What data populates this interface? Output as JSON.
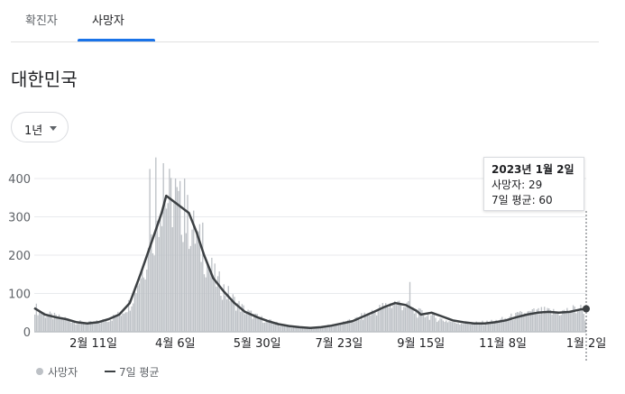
{
  "tabs": [
    {
      "label": "확진자",
      "active": false
    },
    {
      "label": "사망자",
      "active": true
    }
  ],
  "region": "대한민국",
  "period": "1년",
  "tooltip": {
    "date": "2023년 1월 2일",
    "deaths": "사망자: 29",
    "avg": "7일 평균: 60"
  },
  "legend": {
    "deaths": "사망자",
    "avg": "7일 평균"
  },
  "colors": {
    "bars": "#bdc1c6",
    "avg_line": "#3c4043",
    "accent": "#1a73e8"
  },
  "chart_data": {
    "type": "bar",
    "x_start": "2022-01-03",
    "x_end": "2023-01-02",
    "y_ticks": [
      0,
      100,
      200,
      300,
      400
    ],
    "ylim": [
      0,
      460
    ],
    "x_ticks": [
      {
        "date": "2022-02-11",
        "label": "2월 11일"
      },
      {
        "date": "2022-04-06",
        "label": "4월 6일"
      },
      {
        "date": "2022-05-30",
        "label": "5월 30일"
      },
      {
        "date": "2022-07-23",
        "label": "7월 23일"
      },
      {
        "date": "2022-09-15",
        "label": "9월 15일"
      },
      {
        "date": "2022-11-08",
        "label": "11월 8일"
      },
      {
        "date": "2023-01-02",
        "label": "1월 2일"
      }
    ],
    "grid": true,
    "series": [
      {
        "name": "7일 평균",
        "type": "line",
        "points": [
          [
            "2022-01-03",
            62
          ],
          [
            "2022-01-10",
            45
          ],
          [
            "2022-01-17",
            38
          ],
          [
            "2022-01-24",
            33
          ],
          [
            "2022-01-31",
            25
          ],
          [
            "2022-02-07",
            22
          ],
          [
            "2022-02-14",
            25
          ],
          [
            "2022-02-21",
            33
          ],
          [
            "2022-02-28",
            45
          ],
          [
            "2022-03-07",
            75
          ],
          [
            "2022-03-14",
            150
          ],
          [
            "2022-03-21",
            230
          ],
          [
            "2022-03-28",
            310
          ],
          [
            "2022-03-31",
            355
          ],
          [
            "2022-04-05",
            340
          ],
          [
            "2022-04-10",
            325
          ],
          [
            "2022-04-15",
            310
          ],
          [
            "2022-04-20",
            260
          ],
          [
            "2022-04-25",
            200
          ],
          [
            "2022-05-01",
            140
          ],
          [
            "2022-05-08",
            105
          ],
          [
            "2022-05-15",
            75
          ],
          [
            "2022-05-22",
            52
          ],
          [
            "2022-05-30",
            38
          ],
          [
            "2022-06-06",
            28
          ],
          [
            "2022-06-13",
            20
          ],
          [
            "2022-06-20",
            15
          ],
          [
            "2022-06-27",
            12
          ],
          [
            "2022-07-04",
            10
          ],
          [
            "2022-07-11",
            12
          ],
          [
            "2022-07-18",
            16
          ],
          [
            "2022-07-25",
            22
          ],
          [
            "2022-08-01",
            28
          ],
          [
            "2022-08-08",
            40
          ],
          [
            "2022-08-15",
            52
          ],
          [
            "2022-08-22",
            65
          ],
          [
            "2022-08-29",
            75
          ],
          [
            "2022-09-05",
            70
          ],
          [
            "2022-09-12",
            55
          ],
          [
            "2022-09-15",
            45
          ],
          [
            "2022-09-22",
            50
          ],
          [
            "2022-09-29",
            40
          ],
          [
            "2022-10-06",
            30
          ],
          [
            "2022-10-13",
            25
          ],
          [
            "2022-10-20",
            22
          ],
          [
            "2022-10-27",
            22
          ],
          [
            "2022-11-03",
            25
          ],
          [
            "2022-11-10",
            30
          ],
          [
            "2022-11-17",
            38
          ],
          [
            "2022-11-24",
            45
          ],
          [
            "2022-12-01",
            50
          ],
          [
            "2022-12-08",
            52
          ],
          [
            "2022-12-15",
            50
          ],
          [
            "2022-12-22",
            52
          ],
          [
            "2022-12-29",
            58
          ],
          [
            "2023-01-02",
            60
          ]
        ]
      },
      {
        "name": "사망자",
        "type": "bar",
        "weekly_values": [
          62,
          45,
          38,
          33,
          25,
          22,
          25,
          33,
          45,
          75,
          150,
          230,
          355,
          340,
          310,
          260,
          200,
          140,
          105,
          75,
          52,
          38,
          28,
          20,
          15,
          12,
          10,
          12,
          16,
          22,
          28,
          40,
          52,
          65,
          75,
          70,
          50,
          45,
          35,
          28,
          24,
          22,
          22,
          25,
          30,
          38,
          45,
          50,
          52,
          50,
          52,
          58,
          60
        ],
        "peaks": [
          [
            "2022-03-24",
            455
          ],
          [
            "2022-03-29",
            440
          ],
          [
            "2022-03-20",
            425
          ],
          [
            "2022-04-06",
            400
          ],
          [
            "2022-04-12",
            400
          ],
          [
            "2022-04-24",
            285
          ],
          [
            "2022-05-04",
            145
          ],
          [
            "2022-09-08",
            130
          ]
        ],
        "last_value": 29
      }
    ]
  }
}
